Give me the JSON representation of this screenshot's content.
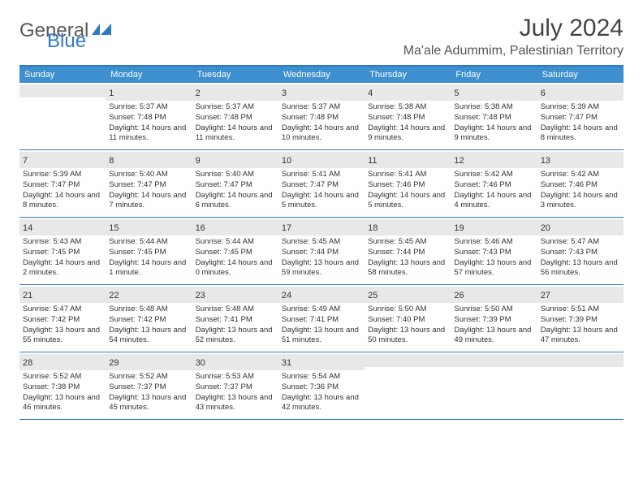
{
  "logo": {
    "part1": "General",
    "part2": "Blue"
  },
  "title": "July 2024",
  "location": "Ma'ale Adummim, Palestinian Territory",
  "day_headers": [
    "Sunday",
    "Monday",
    "Tuesday",
    "Wednesday",
    "Thursday",
    "Friday",
    "Saturday"
  ],
  "header_bg": "#3d8fcf",
  "border_color": "#2f7ac0",
  "daynum_bg": "#e8e8e8",
  "weeks": [
    [
      {
        "n": "",
        "lines": []
      },
      {
        "n": "1",
        "lines": [
          "Sunrise: 5:37 AM",
          "Sunset: 7:48 PM",
          "Daylight: 14 hours and 11 minutes."
        ]
      },
      {
        "n": "2",
        "lines": [
          "Sunrise: 5:37 AM",
          "Sunset: 7:48 PM",
          "Daylight: 14 hours and 11 minutes."
        ]
      },
      {
        "n": "3",
        "lines": [
          "Sunrise: 5:37 AM",
          "Sunset: 7:48 PM",
          "Daylight: 14 hours and 10 minutes."
        ]
      },
      {
        "n": "4",
        "lines": [
          "Sunrise: 5:38 AM",
          "Sunset: 7:48 PM",
          "Daylight: 14 hours and 9 minutes."
        ]
      },
      {
        "n": "5",
        "lines": [
          "Sunrise: 5:38 AM",
          "Sunset: 7:48 PM",
          "Daylight: 14 hours and 9 minutes."
        ]
      },
      {
        "n": "6",
        "lines": [
          "Sunrise: 5:39 AM",
          "Sunset: 7:47 PM",
          "Daylight: 14 hours and 8 minutes."
        ]
      }
    ],
    [
      {
        "n": "7",
        "lines": [
          "Sunrise: 5:39 AM",
          "Sunset: 7:47 PM",
          "Daylight: 14 hours and 8 minutes."
        ]
      },
      {
        "n": "8",
        "lines": [
          "Sunrise: 5:40 AM",
          "Sunset: 7:47 PM",
          "Daylight: 14 hours and 7 minutes."
        ]
      },
      {
        "n": "9",
        "lines": [
          "Sunrise: 5:40 AM",
          "Sunset: 7:47 PM",
          "Daylight: 14 hours and 6 minutes."
        ]
      },
      {
        "n": "10",
        "lines": [
          "Sunrise: 5:41 AM",
          "Sunset: 7:47 PM",
          "Daylight: 14 hours and 5 minutes."
        ]
      },
      {
        "n": "11",
        "lines": [
          "Sunrise: 5:41 AM",
          "Sunset: 7:46 PM",
          "Daylight: 14 hours and 5 minutes."
        ]
      },
      {
        "n": "12",
        "lines": [
          "Sunrise: 5:42 AM",
          "Sunset: 7:46 PM",
          "Daylight: 14 hours and 4 minutes."
        ]
      },
      {
        "n": "13",
        "lines": [
          "Sunrise: 5:42 AM",
          "Sunset: 7:46 PM",
          "Daylight: 14 hours and 3 minutes."
        ]
      }
    ],
    [
      {
        "n": "14",
        "lines": [
          "Sunrise: 5:43 AM",
          "Sunset: 7:45 PM",
          "Daylight: 14 hours and 2 minutes."
        ]
      },
      {
        "n": "15",
        "lines": [
          "Sunrise: 5:44 AM",
          "Sunset: 7:45 PM",
          "Daylight: 14 hours and 1 minute."
        ]
      },
      {
        "n": "16",
        "lines": [
          "Sunrise: 5:44 AM",
          "Sunset: 7:45 PM",
          "Daylight: 14 hours and 0 minutes."
        ]
      },
      {
        "n": "17",
        "lines": [
          "Sunrise: 5:45 AM",
          "Sunset: 7:44 PM",
          "Daylight: 13 hours and 59 minutes."
        ]
      },
      {
        "n": "18",
        "lines": [
          "Sunrise: 5:45 AM",
          "Sunset: 7:44 PM",
          "Daylight: 13 hours and 58 minutes."
        ]
      },
      {
        "n": "19",
        "lines": [
          "Sunrise: 5:46 AM",
          "Sunset: 7:43 PM",
          "Daylight: 13 hours and 57 minutes."
        ]
      },
      {
        "n": "20",
        "lines": [
          "Sunrise: 5:47 AM",
          "Sunset: 7:43 PM",
          "Daylight: 13 hours and 56 minutes."
        ]
      }
    ],
    [
      {
        "n": "21",
        "lines": [
          "Sunrise: 5:47 AM",
          "Sunset: 7:42 PM",
          "Daylight: 13 hours and 55 minutes."
        ]
      },
      {
        "n": "22",
        "lines": [
          "Sunrise: 5:48 AM",
          "Sunset: 7:42 PM",
          "Daylight: 13 hours and 54 minutes."
        ]
      },
      {
        "n": "23",
        "lines": [
          "Sunrise: 5:48 AM",
          "Sunset: 7:41 PM",
          "Daylight: 13 hours and 52 minutes."
        ]
      },
      {
        "n": "24",
        "lines": [
          "Sunrise: 5:49 AM",
          "Sunset: 7:41 PM",
          "Daylight: 13 hours and 51 minutes."
        ]
      },
      {
        "n": "25",
        "lines": [
          "Sunrise: 5:50 AM",
          "Sunset: 7:40 PM",
          "Daylight: 13 hours and 50 minutes."
        ]
      },
      {
        "n": "26",
        "lines": [
          "Sunrise: 5:50 AM",
          "Sunset: 7:39 PM",
          "Daylight: 13 hours and 49 minutes."
        ]
      },
      {
        "n": "27",
        "lines": [
          "Sunrise: 5:51 AM",
          "Sunset: 7:39 PM",
          "Daylight: 13 hours and 47 minutes."
        ]
      }
    ],
    [
      {
        "n": "28",
        "lines": [
          "Sunrise: 5:52 AM",
          "Sunset: 7:38 PM",
          "Daylight: 13 hours and 46 minutes."
        ]
      },
      {
        "n": "29",
        "lines": [
          "Sunrise: 5:52 AM",
          "Sunset: 7:37 PM",
          "Daylight: 13 hours and 45 minutes."
        ]
      },
      {
        "n": "30",
        "lines": [
          "Sunrise: 5:53 AM",
          "Sunset: 7:37 PM",
          "Daylight: 13 hours and 43 minutes."
        ]
      },
      {
        "n": "31",
        "lines": [
          "Sunrise: 5:54 AM",
          "Sunset: 7:36 PM",
          "Daylight: 13 hours and 42 minutes."
        ]
      },
      {
        "n": "",
        "lines": []
      },
      {
        "n": "",
        "lines": []
      },
      {
        "n": "",
        "lines": []
      }
    ]
  ]
}
